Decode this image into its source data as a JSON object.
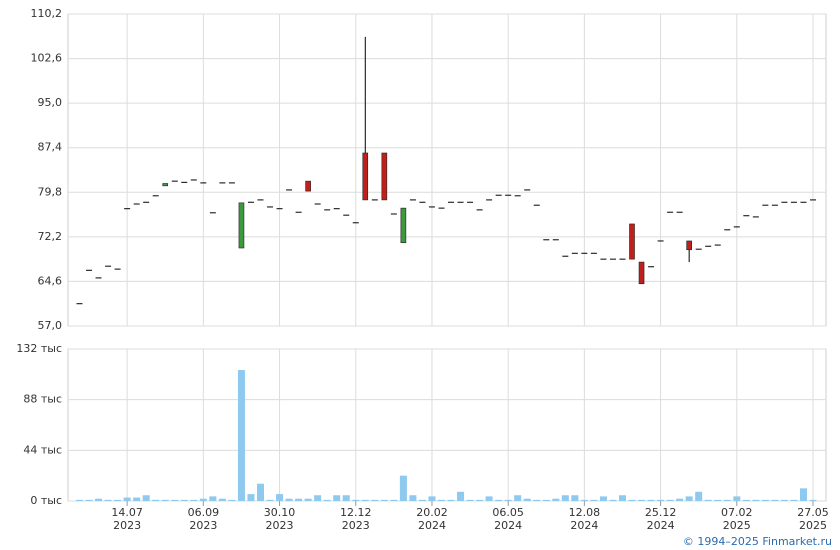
{
  "chart_data": [
    {
      "type": "candlestick",
      "up_color": "#3c9a3c",
      "down_color": "#c0201c",
      "flat_color": "#000000",
      "ylim": [
        57.0,
        110.2
      ],
      "yticks": [
        {
          "value": 57.0,
          "label": "57,0"
        },
        {
          "value": 64.6,
          "label": "64,6"
        },
        {
          "value": 72.2,
          "label": "72,2"
        },
        {
          "value": 79.8,
          "label": "79,8"
        },
        {
          "value": 87.4,
          "label": "87,4"
        },
        {
          "value": 95.0,
          "label": "95,0"
        },
        {
          "value": 102.6,
          "label": "102,6"
        },
        {
          "value": 110.2,
          "label": "110,2"
        }
      ],
      "grid": true,
      "open": [
        60.8,
        66.5,
        65.2,
        67.2,
        66.7,
        77.0,
        77.8,
        78.1,
        79.2,
        80.9,
        81.7,
        81.5,
        81.9,
        81.4,
        76.3,
        81.4,
        81.4,
        70.3,
        78.1,
        78.5,
        77.3,
        77.0,
        80.2,
        76.4,
        81.7,
        77.8,
        76.8,
        77.0,
        75.9,
        74.6,
        86.5,
        78.5,
        86.5,
        76.1,
        71.2,
        78.5,
        78.1,
        77.3,
        77.1,
        78.1,
        78.1,
        78.1,
        76.8,
        78.5,
        79.3,
        79.3,
        79.2,
        80.2,
        77.6,
        71.7,
        71.7,
        68.9,
        69.4,
        69.4,
        69.4,
        68.4,
        68.4,
        68.4,
        74.4,
        67.9,
        67.1,
        71.5,
        76.4,
        76.4,
        71.5,
        70.1,
        70.6,
        70.8,
        73.4,
        73.9,
        75.8,
        75.6,
        77.6,
        77.6,
        78.1,
        78.1,
        78.1,
        78.5
      ],
      "high": [
        60.8,
        66.5,
        65.2,
        67.2,
        66.7,
        77.0,
        77.8,
        78.1,
        79.2,
        81.3,
        81.7,
        81.5,
        81.9,
        81.4,
        76.3,
        81.4,
        81.4,
        78.0,
        78.1,
        78.5,
        77.3,
        77.0,
        80.2,
        76.4,
        81.7,
        77.8,
        76.8,
        77.0,
        75.9,
        74.6,
        106.3,
        78.5,
        86.5,
        76.1,
        77.1,
        78.5,
        78.1,
        77.3,
        77.1,
        78.1,
        78.1,
        78.1,
        76.8,
        78.5,
        79.3,
        79.3,
        79.2,
        80.2,
        77.6,
        71.7,
        71.7,
        68.9,
        69.4,
        69.4,
        69.4,
        68.4,
        68.4,
        68.4,
        74.4,
        67.9,
        67.1,
        71.5,
        76.4,
        76.4,
        71.5,
        70.1,
        70.6,
        70.8,
        73.4,
        73.9,
        75.8,
        75.6,
        77.6,
        77.6,
        78.1,
        78.1,
        78.1,
        78.5
      ],
      "low": [
        60.8,
        66.5,
        65.2,
        67.2,
        66.7,
        77.0,
        77.8,
        78.1,
        79.2,
        80.9,
        81.7,
        81.5,
        81.9,
        81.4,
        76.3,
        81.4,
        81.4,
        70.3,
        78.1,
        78.5,
        77.3,
        77.0,
        80.2,
        76.4,
        80.0,
        77.8,
        76.8,
        77.0,
        75.9,
        74.6,
        78.5,
        78.5,
        78.5,
        76.1,
        71.2,
        78.5,
        78.1,
        77.3,
        77.1,
        78.1,
        78.1,
        78.1,
        76.8,
        78.5,
        79.3,
        79.3,
        79.2,
        80.2,
        77.6,
        71.7,
        71.7,
        68.9,
        69.4,
        69.4,
        69.4,
        68.4,
        68.4,
        68.4,
        68.4,
        64.2,
        67.1,
        71.5,
        76.4,
        76.4,
        67.9,
        70.1,
        70.6,
        70.8,
        73.4,
        73.9,
        75.8,
        75.6,
        77.6,
        77.6,
        78.1,
        78.1,
        78.1,
        78.5
      ],
      "close": [
        60.8,
        66.5,
        65.2,
        67.2,
        66.7,
        77.0,
        77.8,
        78.1,
        79.2,
        81.3,
        81.7,
        81.5,
        81.9,
        81.4,
        76.3,
        81.4,
        81.4,
        78.0,
        78.1,
        78.5,
        77.3,
        77.0,
        80.2,
        76.4,
        80.0,
        77.8,
        76.8,
        77.0,
        75.9,
        74.6,
        78.5,
        78.5,
        78.5,
        76.1,
        77.1,
        78.5,
        78.1,
        77.3,
        77.1,
        78.1,
        78.1,
        78.1,
        76.8,
        78.5,
        79.3,
        79.3,
        79.2,
        80.2,
        77.6,
        71.7,
        71.7,
        68.9,
        69.4,
        69.4,
        69.4,
        68.4,
        68.4,
        68.4,
        68.4,
        64.2,
        67.1,
        71.5,
        76.4,
        76.4,
        70.0,
        70.1,
        70.6,
        70.8,
        73.4,
        73.9,
        75.8,
        75.6,
        77.6,
        77.6,
        78.1,
        78.1,
        78.1,
        78.5
      ]
    },
    {
      "type": "bar",
      "color": "#8ec9f0",
      "categories": [
        null,
        null,
        null,
        null,
        null,
        [
          "14.07",
          "2023"
        ],
        null,
        null,
        null,
        null,
        null,
        null,
        null,
        [
          "06.09",
          "2023"
        ],
        null,
        null,
        null,
        null,
        null,
        null,
        null,
        [
          "30.10",
          "2023"
        ],
        null,
        null,
        null,
        null,
        null,
        null,
        null,
        [
          "12.12",
          "2023"
        ],
        null,
        null,
        null,
        null,
        null,
        null,
        null,
        [
          "20.02",
          "2024"
        ],
        null,
        null,
        null,
        null,
        null,
        null,
        null,
        [
          "06.05",
          "2024"
        ],
        null,
        null,
        null,
        null,
        null,
        null,
        null,
        [
          "12.08",
          "2024"
        ],
        null,
        null,
        null,
        null,
        null,
        null,
        null,
        [
          "25.12",
          "2024"
        ],
        null,
        null,
        null,
        null,
        null,
        null,
        null,
        [
          "07.02",
          "2025"
        ],
        null,
        null,
        null,
        null,
        null,
        null,
        null,
        [
          "27.05",
          "2025"
        ]
      ],
      "values": [
        1,
        1,
        2,
        1,
        1,
        3,
        3,
        5,
        1,
        1,
        1,
        1,
        1,
        2,
        4,
        2,
        1,
        113.7,
        6,
        15,
        1,
        6,
        2,
        2,
        2,
        5,
        1,
        5,
        5,
        1,
        1,
        1,
        1,
        1,
        22,
        5,
        1,
        4,
        1,
        1,
        8,
        1,
        1,
        4,
        1,
        1,
        5,
        2,
        1,
        1,
        2,
        5,
        5,
        1,
        1,
        4,
        1,
        5,
        1,
        1,
        1,
        1,
        1,
        2,
        4,
        8,
        1,
        1,
        1,
        4,
        1,
        1,
        1,
        1,
        1,
        1,
        11,
        1
      ],
      "ylim": [
        0,
        132
      ],
      "yticks": [
        {
          "value": 0,
          "label": "0 тыс"
        },
        {
          "value": 44,
          "label": "44 тыс"
        },
        {
          "value": 88,
          "label": "88 тыс"
        },
        {
          "value": 132,
          "label": "132 тыс"
        }
      ],
      "grid": true
    }
  ],
  "footer": "© 1994–2025 Finmarket.ru"
}
